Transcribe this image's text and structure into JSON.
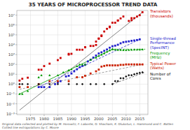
{
  "chart_data": {
    "type": "scatter",
    "title": "35 YEARS OF MICROPROCESSOR TREND DATA",
    "footnote": "Original data collected and plotted by M. Horowitz, F. Labonte, O. Shacham, K. Olukotun, L. Hammond and C. Batten\nCotted line extrapolations by C. Moore",
    "log": "y",
    "grid": true,
    "xlim": [
      1970,
      2018
    ],
    "ylim": [
      0.0008,
      30000000
    ],
    "xticks": [
      1975,
      1980,
      1985,
      1990,
      1995,
      2000,
      2005,
      2010,
      2015
    ],
    "yticks": [
      {
        "value": 0.001,
        "label": "10⁻³"
      },
      {
        "value": 0.01,
        "label": "10⁻²"
      },
      {
        "value": 0.1,
        "label": "10⁻¹"
      },
      {
        "value": 1,
        "label": "10⁰"
      },
      {
        "value": 10,
        "label": "10¹"
      },
      {
        "value": 100,
        "label": "10²"
      },
      {
        "value": 1000,
        "label": "10³"
      },
      {
        "value": 10000,
        "label": "10⁴"
      },
      {
        "value": 100000,
        "label": "10⁵"
      },
      {
        "value": 1000000,
        "label": "10⁶"
      },
      {
        "value": 10000000,
        "label": "10⁷"
      }
    ],
    "series": [
      {
        "name": "Transistors\n(thousands)",
        "type": "scatter",
        "marker": "square",
        "color": "#cc0000",
        "x": [
          1971,
          1972,
          1974,
          1978,
          1979,
          1980,
          1982,
          1985,
          1986,
          1989,
          1989,
          1990,
          1992,
          1993,
          1994,
          1995,
          1995,
          1997,
          1998,
          1999,
          1999,
          2000,
          2000,
          2001,
          2001,
          2002,
          2003,
          2004,
          2004,
          2005,
          2006,
          2007,
          2007,
          2008,
          2009,
          2011,
          2012,
          2012,
          2013,
          2014,
          2015,
          2016
        ],
        "values": [
          2.3,
          3.5,
          4.5,
          29,
          29,
          68,
          120,
          275,
          450,
          1000,
          1180,
          1200,
          3100,
          3100,
          3100,
          5500,
          5500,
          7500,
          7500,
          9500,
          21000,
          42000,
          42000,
          75000,
          88000,
          220000,
          410000,
          592000,
          690000,
          1720000,
          1720000,
          2900000,
          2900000,
          4700000,
          7300000,
          2600000,
          3100000,
          5000000,
          5000000,
          7200000,
          10000000,
          20000000
        ]
      },
      {
        "type": "line",
        "line_style": "solid",
        "color": "#666666",
        "x": [
          1971,
          2016
        ],
        "values": [
          0.0023,
          20000000
        ]
      },
      {
        "name": "Single-thread\nPerformance\n(SpecINT)",
        "type": "scatter",
        "marker": "square",
        "color": "#2222cc",
        "x": [
          1978,
          1979,
          1980,
          1982,
          1984,
          1985,
          1986,
          1988,
          1989,
          1990,
          1991,
          1992,
          1993,
          1994,
          1995,
          1996,
          1997,
          1998,
          1999,
          2000,
          2001,
          2002,
          2003,
          2004,
          2005,
          2006,
          2007,
          2008,
          2009,
          2010,
          2011,
          2012,
          2013,
          2014,
          2015
        ],
        "values": [
          0.5,
          0.5,
          0.5,
          0.5,
          1,
          1.5,
          2,
          6,
          7,
          12,
          20,
          32,
          52,
          70,
          90,
          200,
          300,
          500,
          800,
          1300,
          1700,
          2400,
          3300,
          5000,
          7000,
          8000,
          10000,
          14000,
          18000,
          20000,
          22000,
          25000,
          27000,
          30000,
          35000
        ]
      },
      {
        "type": "line",
        "line_style": "dashed",
        "color": "#2222cc",
        "x": [
          1978,
          2015
        ],
        "values": [
          0.5,
          35000
        ]
      },
      {
        "name": "Frequency\n(MHz)",
        "type": "scatter",
        "marker": "triangle",
        "color": "#009900",
        "x": [
          1971,
          1972,
          1974,
          1978,
          1979,
          1982,
          1985,
          1987,
          1989,
          1989,
          1990,
          1992,
          1993,
          1994,
          1995,
          1997,
          1999,
          2000,
          2001,
          2002,
          2003,
          2004,
          2005,
          2005,
          2006,
          2007,
          2008,
          2009,
          2010,
          2011,
          2012,
          2013,
          2014,
          2015,
          2016
        ],
        "values": [
          0.1,
          0.1,
          0.2,
          5,
          8,
          8,
          8,
          16,
          25,
          25,
          33,
          66,
          100,
          100,
          100,
          300,
          500,
          750,
          1000,
          1400,
          2000,
          2800,
          3500,
          3800,
          3200,
          3000,
          3000,
          2900,
          2900,
          3000,
          3100,
          3200,
          3200,
          3300,
          3400
        ]
      },
      {
        "type": "line",
        "line_style": "solid",
        "color": "#009900",
        "x": [
          1971,
          2005
        ],
        "values": [
          0.1,
          3500
        ]
      },
      {
        "type": "line",
        "line_style": "dashed",
        "color": "#009900",
        "x": [
          2005,
          2017
        ],
        "values": [
          3500,
          3500
        ]
      },
      {
        "name": "Typical Power\n(Watts)",
        "type": "scatter",
        "marker": "square",
        "color": "#cc2200",
        "x": [
          1971,
          1974,
          1978,
          1982,
          1985,
          1989,
          1992,
          1994,
          1995,
          1997,
          1999,
          2000,
          2001,
          2002,
          2003,
          2004,
          2005,
          2006,
          2007,
          2008,
          2009,
          2010,
          2011,
          2012,
          2013,
          2014,
          2015,
          2016
        ],
        "values": [
          0.5,
          0.5,
          1,
          2,
          2,
          2,
          5,
          5,
          7,
          12,
          20,
          30,
          60,
          70,
          80,
          80,
          80,
          80,
          80,
          90,
          90,
          100,
          100,
          100,
          100,
          100,
          100,
          100
        ]
      },
      {
        "type": "line",
        "line_style": "dashed",
        "color": "#888888",
        "x": [
          1971,
          2016
        ],
        "values": [
          0.3,
          100
        ]
      },
      {
        "name": "Number of\nCores",
        "type": "scatter",
        "marker": "diamond",
        "color": "#111111",
        "x": [
          1971,
          1972,
          1974,
          1978,
          1982,
          1985,
          1989,
          1992,
          1994,
          1997,
          1999,
          2002,
          2005,
          2006,
          2007,
          2008,
          2009,
          2010,
          2011,
          2012,
          2013,
          2014,
          2015,
          2016
        ],
        "values": [
          1,
          1,
          1,
          1,
          1,
          1,
          1,
          1,
          1,
          1,
          1,
          1,
          1,
          2,
          2,
          4,
          4,
          6,
          8,
          8,
          10,
          12,
          14,
          16
        ]
      },
      {
        "type": "line",
        "line_style": "dashed",
        "color": "#555555",
        "x": [
          2005,
          2017
        ],
        "values": [
          1,
          16
        ]
      }
    ]
  }
}
